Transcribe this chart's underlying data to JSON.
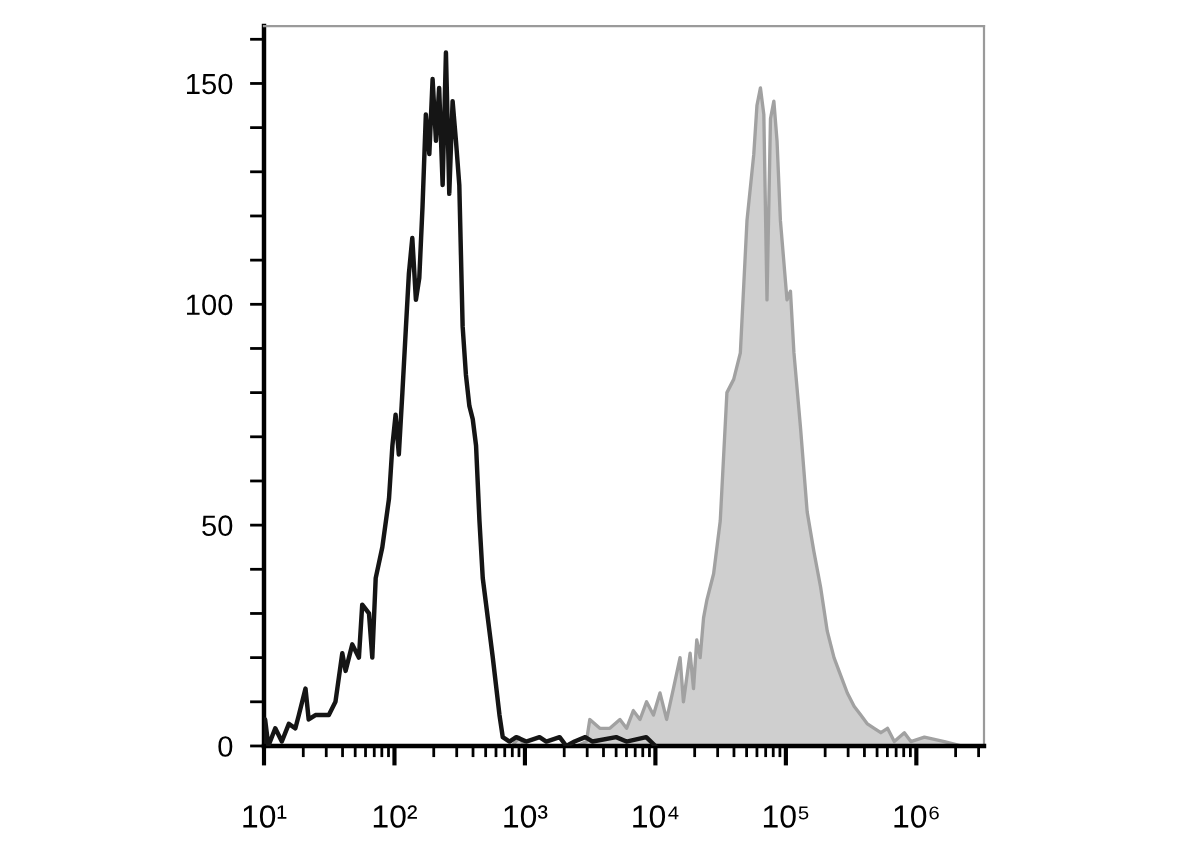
{
  "chart_data": {
    "type": "area",
    "log": "x",
    "xlim": [
      10,
      3300000
    ],
    "ylim": [
      0,
      163
    ],
    "xticks": [
      {
        "value": 10,
        "label": "10¹"
      },
      {
        "value": 20,
        "label": null
      },
      {
        "value": 30,
        "label": null
      },
      {
        "value": 40,
        "label": null
      },
      {
        "value": 50,
        "label": null
      },
      {
        "value": 60,
        "label": null
      },
      {
        "value": 70,
        "label": null
      },
      {
        "value": 80,
        "label": null
      },
      {
        "value": 90,
        "label": null
      },
      {
        "value": 100,
        "label": "10²"
      },
      {
        "value": 200,
        "label": null
      },
      {
        "value": 300,
        "label": null
      },
      {
        "value": 400,
        "label": null
      },
      {
        "value": 500,
        "label": null
      },
      {
        "value": 600,
        "label": null
      },
      {
        "value": 700,
        "label": null
      },
      {
        "value": 800,
        "label": null
      },
      {
        "value": 900,
        "label": null
      },
      {
        "value": 1000,
        "label": "10³"
      },
      {
        "value": 2000,
        "label": null
      },
      {
        "value": 3000,
        "label": null
      },
      {
        "value": 4000,
        "label": null
      },
      {
        "value": 5000,
        "label": null
      },
      {
        "value": 6000,
        "label": null
      },
      {
        "value": 7000,
        "label": null
      },
      {
        "value": 8000,
        "label": null
      },
      {
        "value": 9000,
        "label": null
      },
      {
        "value": 10000,
        "label": "10⁴"
      },
      {
        "value": 20000,
        "label": null
      },
      {
        "value": 30000,
        "label": null
      },
      {
        "value": 40000,
        "label": null
      },
      {
        "value": 50000,
        "label": null
      },
      {
        "value": 60000,
        "label": null
      },
      {
        "value": 70000,
        "label": null
      },
      {
        "value": 80000,
        "label": null
      },
      {
        "value": 90000,
        "label": null
      },
      {
        "value": 100000,
        "label": "10⁵"
      },
      {
        "value": 200000,
        "label": null
      },
      {
        "value": 300000,
        "label": null
      },
      {
        "value": 400000,
        "label": null
      },
      {
        "value": 500000,
        "label": null
      },
      {
        "value": 600000,
        "label": null
      },
      {
        "value": 700000,
        "label": null
      },
      {
        "value": 800000,
        "label": null
      },
      {
        "value": 900000,
        "label": null
      },
      {
        "value": 1000000,
        "label": "10⁶"
      },
      {
        "value": 2000000,
        "label": null
      },
      {
        "value": 3000000,
        "label": null
      }
    ],
    "yticks": [
      0,
      {
        "value": 10,
        "label": null
      },
      {
        "value": 20,
        "label": null
      },
      {
        "value": 30,
        "label": null
      },
      {
        "value": 40,
        "label": null
      },
      50,
      {
        "value": 60,
        "label": null
      },
      {
        "value": 70,
        "label": null
      },
      {
        "value": 80,
        "label": null
      },
      {
        "value": 90,
        "label": null
      },
      100,
      {
        "value": 110,
        "label": null
      },
      {
        "value": 120,
        "label": null
      },
      {
        "value": 130,
        "label": null
      },
      {
        "value": 140,
        "label": null
      },
      150,
      {
        "value": 160,
        "label": null
      }
    ],
    "series": [
      {
        "color": "#cfcfcf",
        "x": [
          18.5,
          800,
          900,
          1000,
          2500,
          2958,
          3141,
          3750,
          4477,
          5346,
          6013,
          6775,
          7621,
          8551,
          9661,
          10840,
          12190,
          13740,
          15450,
          16400,
          18450,
          19590,
          20750,
          22030,
          23390,
          24780,
          27930,
          31410,
          35320,
          39810,
          44770,
          50350,
          56760,
          60000,
          63830,
          67760,
          71650,
          76210,
          80880,
          85550,
          90780,
          102000,
          108400,
          115300,
          129500,
          145600,
          164000,
          184500,
          207600,
          233800,
          263000,
          295800,
          333300,
          375000,
          421700,
          475300,
          534600,
          601200,
          677500,
          809000,
          907800,
          1153000,
          1641000,
          2203000
        ],
        "values": [
          0,
          0,
          2,
          0,
          0,
          1,
          6,
          4,
          4,
          6,
          4,
          8,
          6,
          10,
          7,
          12,
          6,
          13,
          20,
          10,
          21,
          13,
          24,
          20,
          29,
          33,
          39,
          51,
          80,
          83,
          89,
          119,
          134,
          145,
          149,
          143,
          101,
          142,
          146,
          137,
          119,
          101,
          103,
          89,
          72,
          53,
          44,
          36,
          26,
          20,
          16,
          12,
          9,
          7,
          5,
          4,
          3,
          4,
          1,
          3,
          1,
          2,
          1,
          0
        ]
      },
      {
        "type": "line",
        "color": "#151515",
        "x": [
          10,
          10.2,
          10.8,
          12.2,
          13.7,
          15.5,
          17.4,
          18.5,
          20.8,
          22,
          24.8,
          31.4,
          35.3,
          39.8,
          42.2,
          47.5,
          53.4,
          56.6,
          63.8,
          67.6,
          71.8,
          80.7,
          90.8,
          96.4,
          102,
          108,
          115,
          122,
          129,
          137,
          146,
          155,
          164,
          174,
          185,
          196,
          208,
          220,
          234,
          248,
          263,
          279,
          296,
          314,
          333,
          353,
          375,
          398,
          422,
          448,
          475,
          504,
          567,
          638,
          676,
          762,
          857,
          1023,
          1294,
          1458,
          1845,
          2076,
          2400,
          2900,
          3300,
          5000,
          6000,
          8500,
          10000
        ],
        "values": [
          1,
          6,
          0,
          4,
          1,
          5,
          4,
          7,
          13,
          6,
          7,
          7,
          10,
          21,
          17,
          23,
          20,
          32,
          30,
          20,
          38,
          45,
          56,
          68,
          75,
          66,
          80,
          94,
          107,
          115,
          101,
          106,
          122,
          143,
          134,
          151,
          137,
          149,
          127,
          157,
          125,
          146,
          137,
          127,
          95,
          84,
          77,
          74,
          68,
          51,
          38,
          32,
          20,
          7,
          2,
          1,
          2,
          1,
          2,
          1,
          2,
          0,
          1,
          2,
          1,
          2,
          1,
          2,
          0
        ]
      }
    ]
  }
}
